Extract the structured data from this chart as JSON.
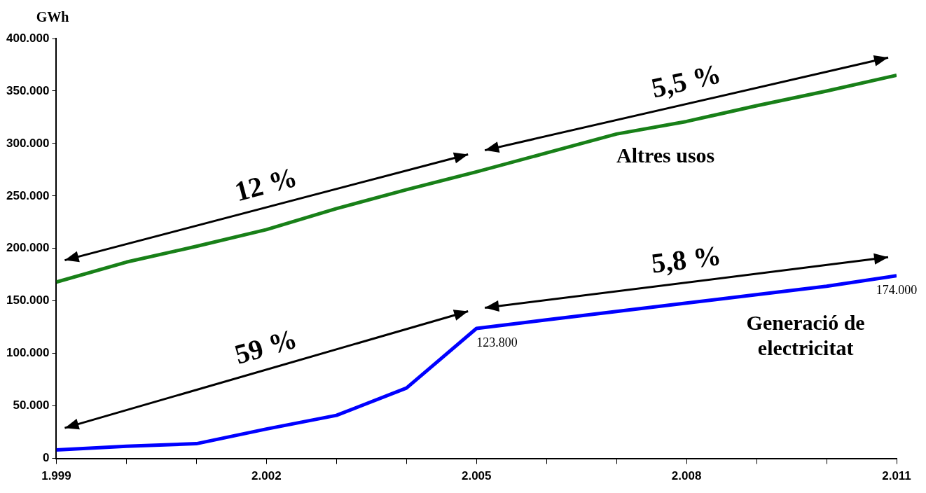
{
  "chart_data": {
    "type": "line",
    "ylabel": "GWh",
    "x": [
      1999,
      2000,
      2001,
      2002,
      2003,
      2004,
      2005,
      2006,
      2007,
      2008,
      2009,
      2010,
      2011
    ],
    "series": [
      {
        "name": "Altres usos",
        "color": "#188018",
        "values": [
          168000,
          187000,
          202000,
          218000,
          238000,
          256000,
          273000,
          291000,
          309000,
          321000,
          336000,
          350000,
          365000
        ]
      },
      {
        "name": "Generació de electricitat",
        "color": "#0000ff",
        "values": [
          8000,
          11500,
          14000,
          28000,
          41000,
          67000,
          123800,
          132000,
          140000,
          148000,
          156000,
          164000,
          174000
        ],
        "value_labels": [
          null,
          null,
          null,
          null,
          null,
          null,
          "123.800",
          null,
          null,
          null,
          null,
          null,
          "174.000"
        ]
      }
    ],
    "xlim": [
      1999,
      2011
    ],
    "xticks": [
      {
        "value": 1999,
        "label": "1.999"
      },
      {
        "value": 2000,
        "label": null
      },
      {
        "value": 2001,
        "label": null
      },
      {
        "value": 2002,
        "label": "2.002"
      },
      {
        "value": 2003,
        "label": null
      },
      {
        "value": 2004,
        "label": null
      },
      {
        "value": 2005,
        "label": "2.005"
      },
      {
        "value": 2006,
        "label": null
      },
      {
        "value": 2007,
        "label": null
      },
      {
        "value": 2008,
        "label": "2.008"
      },
      {
        "value": 2009,
        "label": null
      },
      {
        "value": 2010,
        "label": null
      },
      {
        "value": 2011,
        "label": "2.011"
      }
    ],
    "ylim": [
      0,
      400000
    ],
    "yticks": [
      {
        "value": 0,
        "label": "0"
      },
      {
        "value": 50000,
        "label": "50.000"
      },
      {
        "value": 100000,
        "label": "100.000"
      },
      {
        "value": 150000,
        "label": "150.000"
      },
      {
        "value": 200000,
        "label": "200.000"
      },
      {
        "value": 250000,
        "label": "250.000"
      },
      {
        "value": 300000,
        "label": "300.000"
      },
      {
        "value": 350000,
        "label": "350.000"
      },
      {
        "value": 400000,
        "label": "400.000"
      }
    ],
    "annotations": [
      "12 %",
      "5,5 %",
      "59 %",
      "5,8 %"
    ],
    "grid": false,
    "legend": false,
    "marker": "none",
    "line_style": "solid"
  }
}
